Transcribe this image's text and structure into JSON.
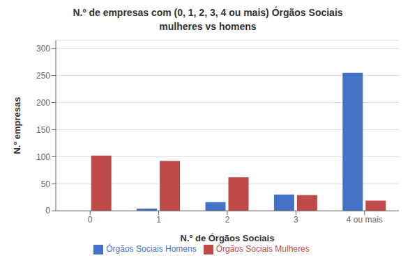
{
  "chart_data": {
    "type": "bar",
    "title": "N.º de empresas com (0, 1, 2, 3, 4 ou mais) Órgãos Sociais\nmulheres vs homens",
    "categories": [
      "0",
      "1",
      "2",
      "3",
      "4 ou mais"
    ],
    "series": [
      {
        "name": "Órgãos Sociais Homens",
        "color": "#4472C4",
        "values": [
          0,
          4,
          16,
          30,
          255
        ]
      },
      {
        "name": "Órgãos Sociais Mulheres",
        "color": "#BE4B48",
        "values": [
          102,
          92,
          62,
          29,
          19
        ]
      }
    ],
    "xlabel": "N.º de Órgãos Sociais",
    "ylabel": "N.º empresas",
    "ylim": [
      0,
      315
    ],
    "yticks": [
      0,
      50,
      100,
      150,
      200,
      250,
      300
    ],
    "grid": true,
    "legend": "bottom"
  }
}
